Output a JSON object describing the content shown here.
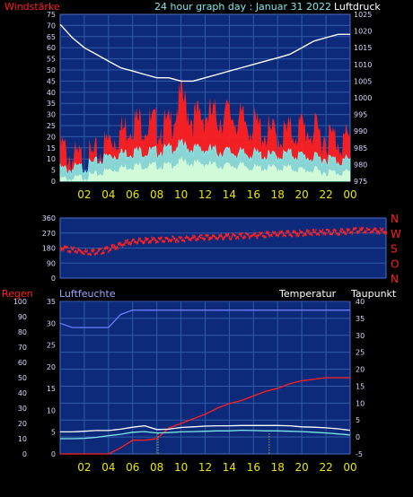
{
  "colors": {
    "panel_bg": "#0d2a7a",
    "grid": "#2f5ba8",
    "axis_text_light": "#d8d8ff",
    "x_label": "#e8e800",
    "red": "#ff2020",
    "white": "#ffffff",
    "cyan": "#7fe8e8",
    "mint": "#d8ffd8",
    "blue_line": "#6b7cff",
    "title": "#7fe8e8",
    "violet_label": "#9aa7ff"
  },
  "header": {
    "left_label": "Windstärke",
    "title": "24 hour graph day : Januar 31 2022",
    "right_label": "Luftdruck"
  },
  "x_ticks": [
    "02",
    "04",
    "06",
    "08",
    "10",
    "12",
    "14",
    "16",
    "18",
    "20",
    "22",
    "00"
  ],
  "panel1": {
    "left_ticks": [
      "75",
      "70",
      "65",
      "60",
      "55",
      "50",
      "45",
      "40",
      "35",
      "30",
      "25",
      "20",
      "15",
      "10",
      "5",
      "0"
    ],
    "right_ticks": [
      "1025",
      "1020",
      "1015",
      "1010",
      "1005",
      "1000",
      "995",
      "990",
      "985",
      "980",
      "975"
    ]
  },
  "panel2": {
    "left_ticks": [
      "360",
      "270",
      "180",
      "90",
      "0"
    ],
    "direction_labels": [
      "N",
      "W",
      "S",
      "O",
      "N"
    ]
  },
  "panel3": {
    "labels": {
      "regen": "Regen",
      "luftfeuchte": "Luftfeuchte",
      "temperatur": "Temperatur",
      "taupunkt": "Taupunkt"
    },
    "rain_ticks": [
      "100",
      "90",
      "80",
      "70",
      "60",
      "50",
      "40",
      "30",
      "20",
      "10",
      "0"
    ],
    "hum_ticks": [
      "35",
      "30",
      "25",
      "20",
      "15",
      "10",
      "5",
      "0"
    ],
    "temp_ticks": [
      "40",
      "35",
      "30",
      "25",
      "20",
      "15",
      "10",
      "5",
      "0",
      "-5"
    ]
  },
  "chart_data": [
    {
      "type": "line",
      "title": "24 hour graph day : Januar 31 2022",
      "x": [
        0,
        1,
        2,
        3,
        4,
        5,
        6,
        7,
        8,
        9,
        10,
        11,
        12,
        13,
        14,
        15,
        16,
        17,
        18,
        19,
        20,
        21,
        22,
        23,
        24
      ],
      "series": [
        {
          "name": "Luftdruck",
          "axis": "right",
          "ylim": [
            975,
            1025
          ],
          "values": [
            1022,
            1018,
            1015,
            1013,
            1011,
            1009,
            1008,
            1007,
            1006,
            1006,
            1005,
            1005,
            1006,
            1007,
            1008,
            1009,
            1010,
            1011,
            1012,
            1013,
            1015,
            1017,
            1018,
            1019,
            1019
          ]
        },
        {
          "name": "Windstärke",
          "axis": "left",
          "ylim": [
            0,
            75
          ],
          "values": [
            16,
            10,
            9,
            11,
            18,
            22,
            27,
            26,
            25,
            24,
            38,
            28,
            30,
            29,
            30,
            27,
            25,
            22,
            20,
            22,
            24,
            22,
            20,
            19,
            18
          ]
        },
        {
          "axis": "left",
          "ylim": [
            0,
            75
          ],
          "values": [
            5,
            5,
            6,
            8,
            11,
            12,
            13,
            13,
            13,
            14,
            16,
            14,
            14,
            13,
            13,
            12,
            12,
            11,
            11,
            12,
            11,
            10,
            10,
            9,
            9
          ]
        },
        {
          "axis": "left",
          "ylim": [
            0,
            75
          ],
          "values": [
            1,
            1,
            2,
            3,
            5,
            6,
            7,
            7,
            7,
            7,
            9,
            8,
            8,
            7,
            7,
            7,
            6,
            6,
            6,
            6,
            5,
            5,
            4,
            4,
            4
          ]
        }
      ]
    },
    {
      "type": "scatter",
      "ylim": [
        0,
        360
      ],
      "x": [
        0,
        1,
        2,
        3,
        4,
        5,
        6,
        7,
        8,
        9,
        10,
        11,
        12,
        13,
        14,
        15,
        16,
        17,
        18,
        19,
        20,
        21,
        22,
        23,
        24
      ],
      "values": [
        190,
        175,
        165,
        170,
        195,
        225,
        232,
        236,
        240,
        244,
        248,
        252,
        256,
        260,
        264,
        268,
        272,
        276,
        280,
        282,
        284,
        288,
        295,
        292,
        290
      ]
    },
    {
      "type": "line",
      "x": [
        0,
        1,
        2,
        3,
        4,
        5,
        6,
        7,
        8,
        9,
        10,
        11,
        12,
        13,
        14,
        15,
        16,
        17,
        18,
        19,
        20,
        21,
        22,
        23,
        24
      ],
      "series": [
        {
          "name": "Regen",
          "axis": "rain",
          "ylim": [
            0,
            100
          ],
          "values": [
            0,
            0,
            0,
            0,
            0,
            4,
            9,
            9,
            10,
            17,
            20,
            23,
            26,
            30,
            33,
            35,
            38,
            41,
            43,
            46,
            48,
            49,
            50,
            50,
            50
          ]
        },
        {
          "name": "Luftfeuchte",
          "axis": "humidity",
          "ylim": [
            0,
            35
          ],
          "values": [
            30,
            29,
            29,
            29,
            29,
            32,
            33,
            33,
            33,
            33,
            33,
            33,
            33,
            33,
            33,
            33,
            33,
            33,
            33,
            33,
            33,
            33,
            33,
            33,
            33
          ]
        },
        {
          "name": "Temperatur",
          "axis": "temp",
          "ylim": [
            -5,
            40
          ],
          "values": [
            1.5,
            1.5,
            1.7,
            1.9,
            1.9,
            2.3,
            2.9,
            3.3,
            2.2,
            2.3,
            2.8,
            3.0,
            3.2,
            3.3,
            3.3,
            3.4,
            3.4,
            3.4,
            3.4,
            3.3,
            3.0,
            2.9,
            2.7,
            2.4,
            2.0
          ]
        },
        {
          "name": "Taupunkt",
          "axis": "temp",
          "ylim": [
            -5,
            40
          ],
          "values": [
            -0.5,
            -0.5,
            -0.4,
            -0.1,
            0.4,
            0.8,
            1.4,
            1.6,
            1.2,
            1.3,
            1.5,
            1.6,
            1.7,
            1.8,
            1.8,
            2.0,
            1.9,
            1.8,
            1.8,
            1.7,
            1.6,
            1.4,
            1.2,
            0.9,
            0.6
          ]
        }
      ]
    }
  ]
}
